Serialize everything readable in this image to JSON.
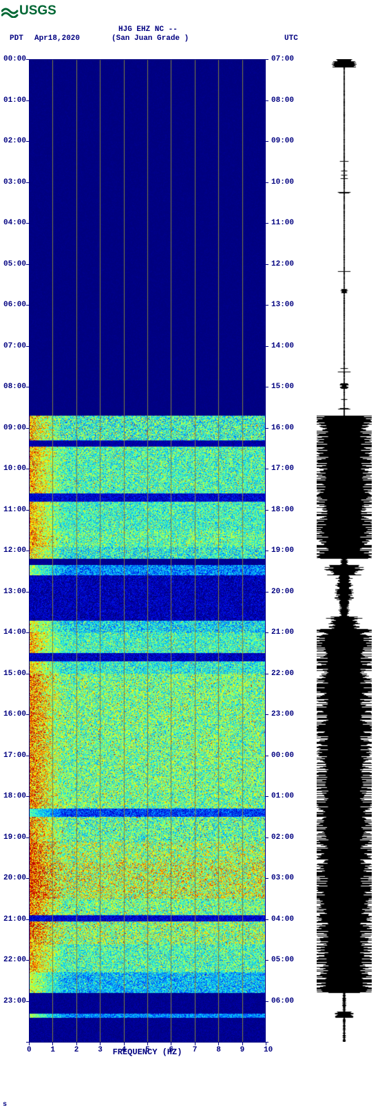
{
  "logo": {
    "text": "USGS",
    "color": "#006633",
    "wave_color": "#006633"
  },
  "header": {
    "pdt_label": "PDT",
    "date": "Apr18,2020",
    "station": "HJG EHZ NC --",
    "location": "(San Juan Grade )",
    "utc_label": "UTC",
    "color": "#000080",
    "fontsize": 11
  },
  "spectrogram": {
    "type": "spectrogram",
    "xlim": [
      0,
      10
    ],
    "ylim_hours": [
      0,
      24
    ],
    "xlabel": "FREQUENCY (HZ)",
    "xticks": [
      0,
      1,
      2,
      3,
      4,
      5,
      6,
      7,
      8,
      9,
      10
    ],
    "grid_color": "#808040",
    "background_color": "#ffffff",
    "label_color": "#000080",
    "label_fontsize": 11,
    "left_time_labels": [
      "00:00",
      "01:00",
      "02:00",
      "03:00",
      "04:00",
      "05:00",
      "06:00",
      "07:00",
      "08:00",
      "09:00",
      "10:00",
      "11:00",
      "12:00",
      "13:00",
      "14:00",
      "15:00",
      "16:00",
      "17:00",
      "18:00",
      "19:00",
      "20:00",
      "21:00",
      "22:00",
      "23:00"
    ],
    "right_time_labels": [
      "07:00",
      "08:00",
      "09:00",
      "10:00",
      "11:00",
      "12:00",
      "13:00",
      "14:00",
      "15:00",
      "16:00",
      "17:00",
      "18:00",
      "19:00",
      "20:00",
      "21:00",
      "22:00",
      "23:00",
      "00:00",
      "01:00",
      "02:00",
      "03:00",
      "04:00",
      "05:00",
      "06:00"
    ],
    "colormap": {
      "stops": [
        [
          0.0,
          "#00007f"
        ],
        [
          0.12,
          "#0000e0"
        ],
        [
          0.25,
          "#0060ff"
        ],
        [
          0.38,
          "#00d0ff"
        ],
        [
          0.5,
          "#40ffc0"
        ],
        [
          0.62,
          "#a0ff60"
        ],
        [
          0.75,
          "#ffff00"
        ],
        [
          0.87,
          "#ff8000"
        ],
        [
          1.0,
          "#c00000"
        ]
      ]
    },
    "time_bands": [
      {
        "start": 0.0,
        "end": 8.7,
        "base": 0.0,
        "noise": 0.02
      },
      {
        "start": 8.7,
        "end": 9.3,
        "base": 0.48,
        "noise": 0.25
      },
      {
        "start": 9.3,
        "end": 9.45,
        "base": 0.05,
        "noise": 0.05
      },
      {
        "start": 9.45,
        "end": 10.6,
        "base": 0.5,
        "noise": 0.22
      },
      {
        "start": 10.6,
        "end": 10.8,
        "base": 0.1,
        "noise": 0.1
      },
      {
        "start": 10.8,
        "end": 11.5,
        "base": 0.48,
        "noise": 0.2
      },
      {
        "start": 11.5,
        "end": 11.9,
        "base": 0.52,
        "noise": 0.22
      },
      {
        "start": 11.9,
        "end": 12.2,
        "base": 0.45,
        "noise": 0.22
      },
      {
        "start": 12.2,
        "end": 12.35,
        "base": 0.02,
        "noise": 0.03
      },
      {
        "start": 12.35,
        "end": 12.6,
        "base": 0.3,
        "noise": 0.18
      },
      {
        "start": 12.6,
        "end": 13.7,
        "base": 0.06,
        "noise": 0.12
      },
      {
        "start": 13.7,
        "end": 14.0,
        "base": 0.4,
        "noise": 0.2
      },
      {
        "start": 14.0,
        "end": 14.5,
        "base": 0.48,
        "noise": 0.2
      },
      {
        "start": 14.5,
        "end": 14.7,
        "base": 0.08,
        "noise": 0.1
      },
      {
        "start": 14.7,
        "end": 15.0,
        "base": 0.45,
        "noise": 0.2
      },
      {
        "start": 15.0,
        "end": 18.3,
        "base": 0.55,
        "noise": 0.25
      },
      {
        "start": 18.3,
        "end": 18.5,
        "base": 0.2,
        "noise": 0.15
      },
      {
        "start": 18.5,
        "end": 19.1,
        "base": 0.52,
        "noise": 0.25
      },
      {
        "start": 19.1,
        "end": 19.6,
        "base": 0.6,
        "noise": 0.28
      },
      {
        "start": 19.6,
        "end": 20.5,
        "base": 0.65,
        "noise": 0.3
      },
      {
        "start": 20.5,
        "end": 20.9,
        "base": 0.55,
        "noise": 0.25
      },
      {
        "start": 20.9,
        "end": 21.05,
        "base": 0.1,
        "noise": 0.1
      },
      {
        "start": 21.05,
        "end": 21.6,
        "base": 0.58,
        "noise": 0.28
      },
      {
        "start": 21.6,
        "end": 22.3,
        "base": 0.5,
        "noise": 0.22
      },
      {
        "start": 22.3,
        "end": 22.8,
        "base": 0.35,
        "noise": 0.18
      },
      {
        "start": 22.8,
        "end": 23.3,
        "base": 0.02,
        "noise": 0.04
      },
      {
        "start": 23.3,
        "end": 23.4,
        "base": 0.3,
        "noise": 0.15
      },
      {
        "start": 23.4,
        "end": 24.0,
        "base": 0.02,
        "noise": 0.04
      }
    ]
  },
  "waveform": {
    "color": "#000000",
    "time_bands": [
      {
        "start": 0.0,
        "end": 0.2,
        "amp": 0.35
      },
      {
        "start": 0.2,
        "end": 5.6,
        "amp": 0.02
      },
      {
        "start": 5.6,
        "end": 5.7,
        "amp": 0.1
      },
      {
        "start": 5.7,
        "end": 7.9,
        "amp": 0.02
      },
      {
        "start": 7.9,
        "end": 8.05,
        "amp": 0.12
      },
      {
        "start": 8.05,
        "end": 8.7,
        "amp": 0.02
      },
      {
        "start": 8.7,
        "end": 12.2,
        "amp": 0.95
      },
      {
        "start": 12.2,
        "end": 12.35,
        "amp": 0.1
      },
      {
        "start": 12.35,
        "end": 12.6,
        "amp": 0.6
      },
      {
        "start": 12.6,
        "end": 13.2,
        "amp": 0.25
      },
      {
        "start": 13.2,
        "end": 13.6,
        "amp": 0.15
      },
      {
        "start": 13.6,
        "end": 13.9,
        "amp": 0.5
      },
      {
        "start": 13.9,
        "end": 22.8,
        "amp": 0.95
      },
      {
        "start": 22.8,
        "end": 23.25,
        "amp": 0.05
      },
      {
        "start": 23.25,
        "end": 23.4,
        "amp": 0.3
      },
      {
        "start": 23.4,
        "end": 24.0,
        "amp": 0.04
      }
    ]
  },
  "footer": {
    "mark": "s"
  }
}
